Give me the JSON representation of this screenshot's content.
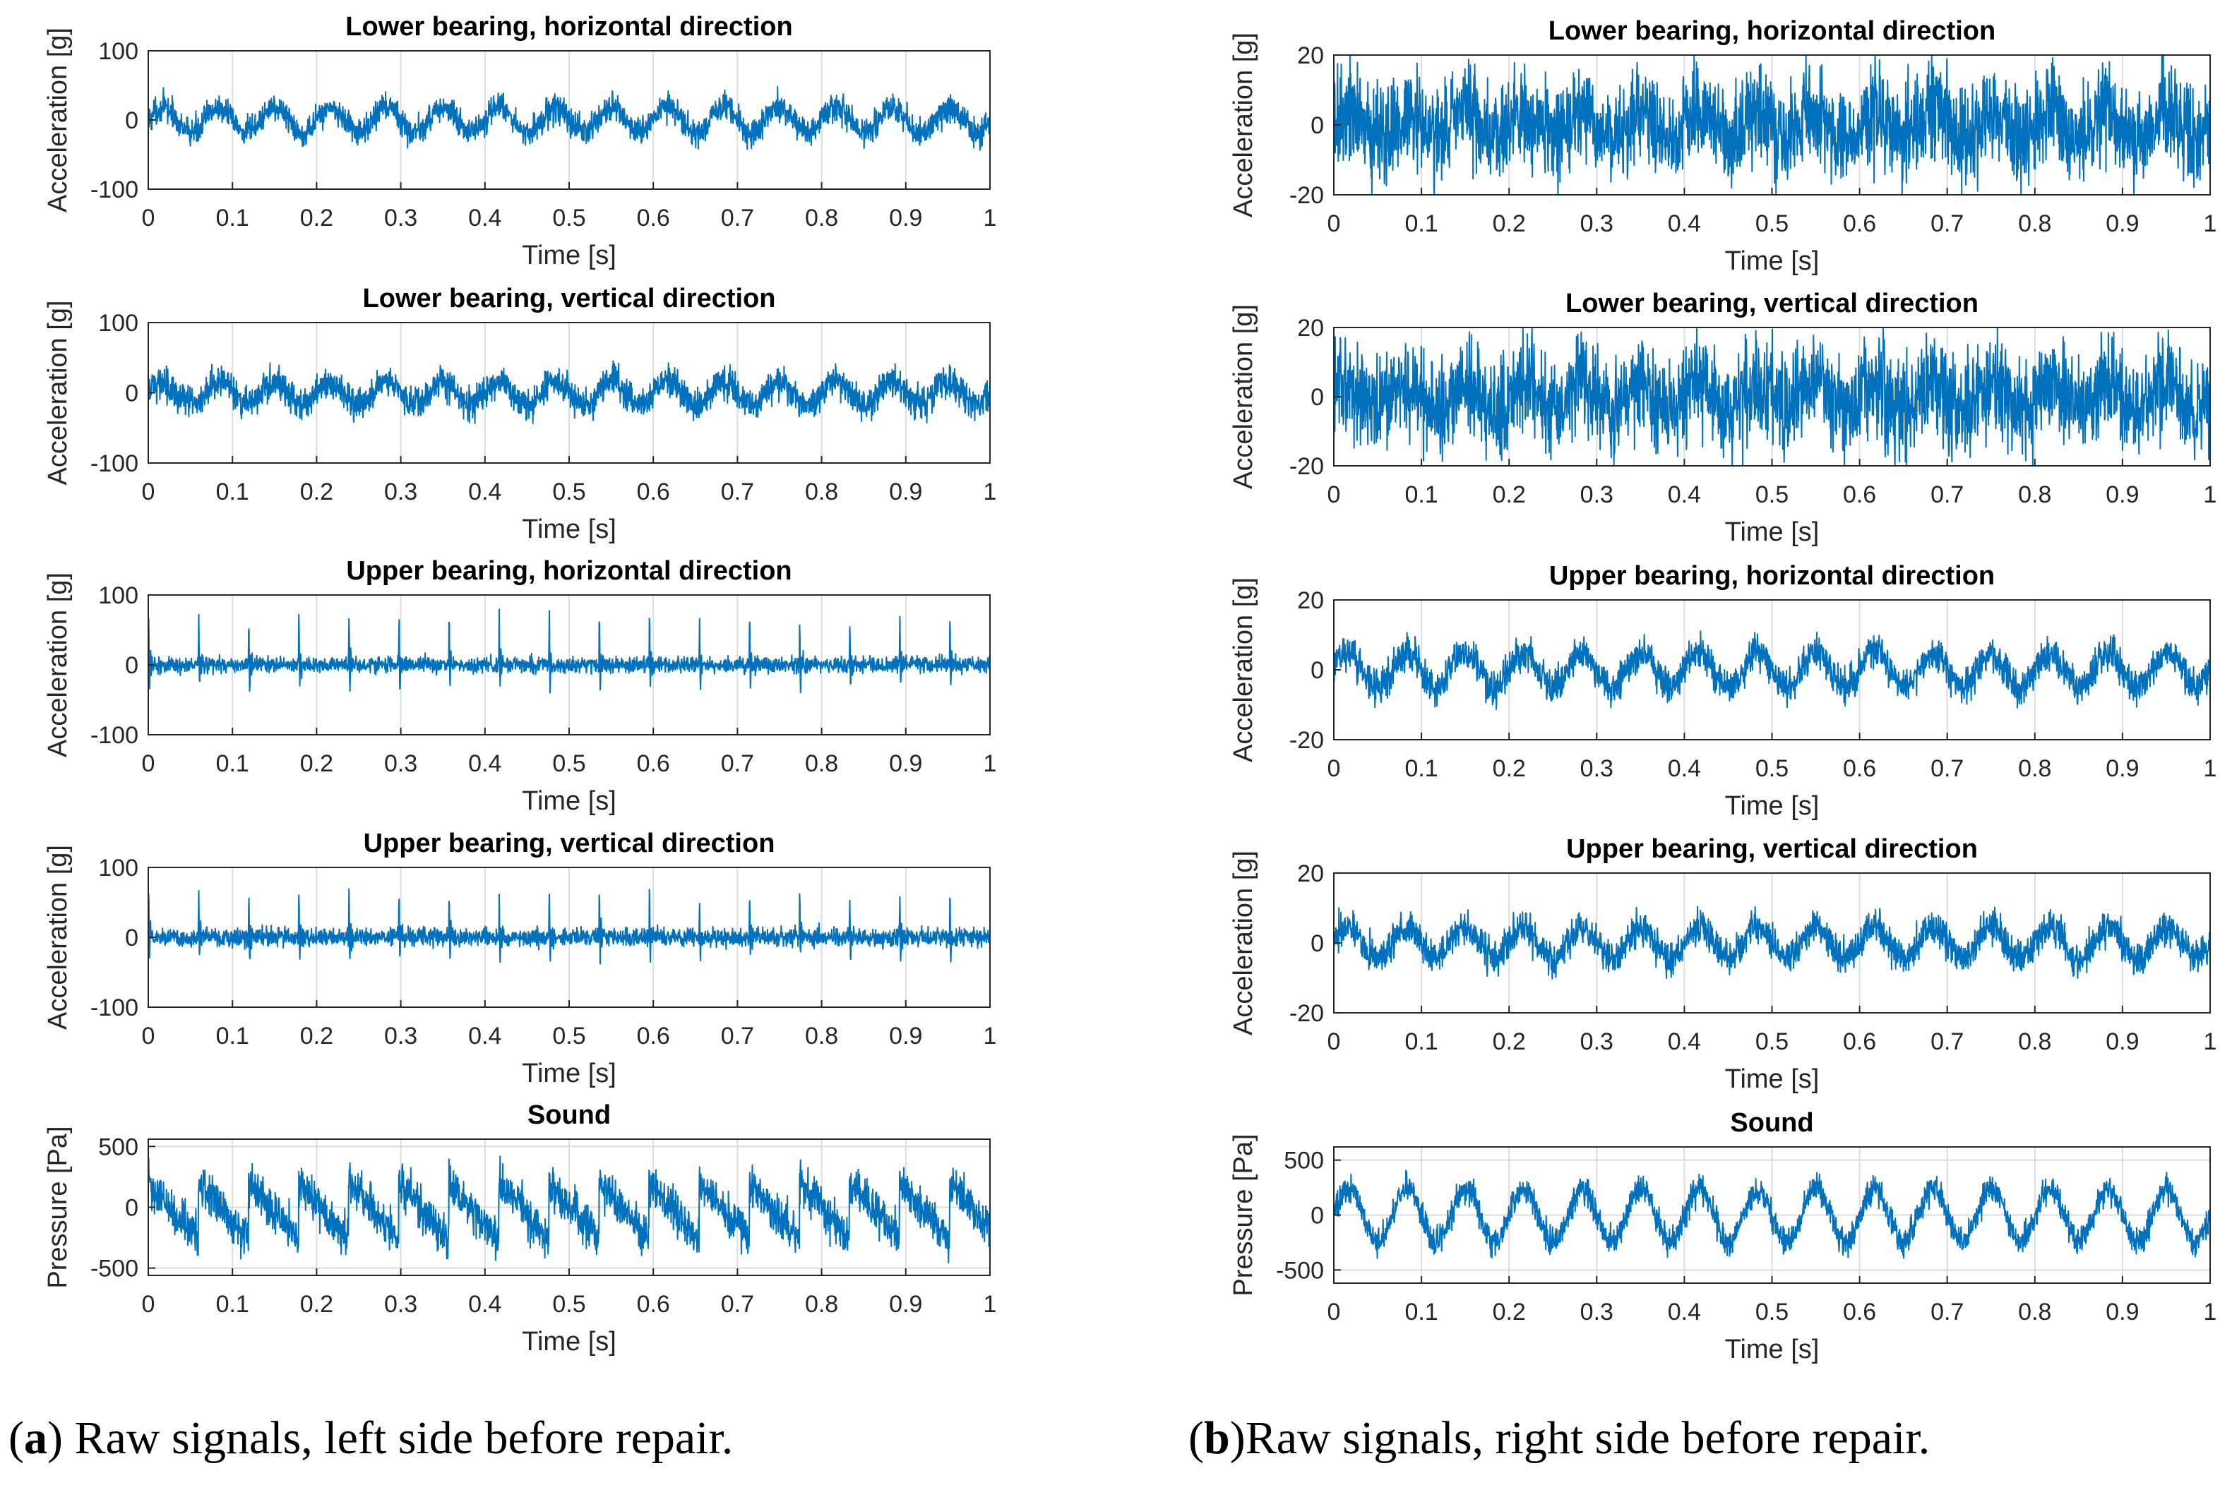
{
  "colors": {
    "signal": "#0072bd",
    "axis": "#262626",
    "grid": "#dcdcdc"
  },
  "chart_data": [
    {
      "type": "line",
      "panel": "a",
      "title": "Lower bearing, horizontal direction",
      "xlabel": "Time [s]",
      "ylabel": "Acceleration [g]",
      "xlim": [
        0,
        1
      ],
      "ylim": [
        -100,
        100
      ],
      "xticks": [
        0,
        0.1,
        0.2,
        0.3,
        0.4,
        0.5,
        0.6,
        0.7,
        0.8,
        0.9,
        1
      ],
      "xtick_labels": [
        "0",
        "0.1",
        "0.2",
        "0.3",
        "0.4",
        "0.5",
        "0.6",
        "0.7",
        "0.8",
        "0.9",
        "1"
      ],
      "yticks": [
        -100,
        0,
        100
      ],
      "ytick_labels": [
        "-100",
        "0",
        "100"
      ],
      "grid": "x",
      "series": [
        {
          "name": "signal",
          "pattern": "noise",
          "amplitude": 18,
          "period_s": 0.0667,
          "noise": 14
        }
      ]
    },
    {
      "type": "line",
      "panel": "a",
      "title": "Lower bearing, vertical direction",
      "xlabel": "Time [s]",
      "ylabel": "Acceleration [g]",
      "xlim": [
        0,
        1
      ],
      "ylim": [
        -100,
        100
      ],
      "xticks": [
        0,
        0.1,
        0.2,
        0.3,
        0.4,
        0.5,
        0.6,
        0.7,
        0.8,
        0.9,
        1
      ],
      "xtick_labels": [
        "0",
        "0.1",
        "0.2",
        "0.3",
        "0.4",
        "0.5",
        "0.6",
        "0.7",
        "0.8",
        "0.9",
        "1"
      ],
      "yticks": [
        -100,
        0,
        100
      ],
      "ytick_labels": [
        "-100",
        "0",
        "100"
      ],
      "grid": "x",
      "series": [
        {
          "name": "signal",
          "pattern": "noise",
          "amplitude": 16,
          "period_s": 0.0667,
          "noise": 16
        }
      ]
    },
    {
      "type": "line",
      "panel": "a",
      "title": "Upper bearing, horizontal direction",
      "xlabel": "Time [s]",
      "ylabel": "Acceleration [g]",
      "xlim": [
        0,
        1
      ],
      "ylim": [
        -100,
        100
      ],
      "xticks": [
        0,
        0.1,
        0.2,
        0.3,
        0.4,
        0.5,
        0.6,
        0.7,
        0.8,
        0.9,
        1
      ],
      "xtick_labels": [
        "0",
        "0.1",
        "0.2",
        "0.3",
        "0.4",
        "0.5",
        "0.6",
        "0.7",
        "0.8",
        "0.9",
        "1"
      ],
      "yticks": [
        -100,
        0,
        100
      ],
      "ytick_labels": [
        "-100",
        "0",
        "100"
      ],
      "grid": "x",
      "series": [
        {
          "name": "signal",
          "pattern": "impulse",
          "amplitude": 95,
          "period_s": 0.0595,
          "noise": 8
        }
      ]
    },
    {
      "type": "line",
      "panel": "a",
      "title": "Upper bearing, vertical direction",
      "xlabel": "Time [s]",
      "ylabel": "Acceleration [g]",
      "xlim": [
        0,
        1
      ],
      "ylim": [
        -100,
        100
      ],
      "xticks": [
        0,
        0.1,
        0.2,
        0.3,
        0.4,
        0.5,
        0.6,
        0.7,
        0.8,
        0.9,
        1
      ],
      "xtick_labels": [
        "0",
        "0.1",
        "0.2",
        "0.3",
        "0.4",
        "0.5",
        "0.6",
        "0.7",
        "0.8",
        "0.9",
        "1"
      ],
      "yticks": [
        -100,
        0,
        100
      ],
      "ytick_labels": [
        "-100",
        "0",
        "100"
      ],
      "grid": "x",
      "series": [
        {
          "name": "signal",
          "pattern": "impulse",
          "amplitude": 85,
          "period_s": 0.0595,
          "noise": 9
        }
      ]
    },
    {
      "type": "line",
      "panel": "a",
      "title": "Sound",
      "xlabel": "Time [s]",
      "ylabel": "Pressure [Pa]",
      "xlim": [
        0,
        1
      ],
      "ylim": [
        -560,
        560
      ],
      "xticks": [
        0,
        0.1,
        0.2,
        0.3,
        0.4,
        0.5,
        0.6,
        0.7,
        0.8,
        0.9,
        1
      ],
      "xtick_labels": [
        "0",
        "0.1",
        "0.2",
        "0.3",
        "0.4",
        "0.5",
        "0.6",
        "0.7",
        "0.8",
        "0.9",
        "1"
      ],
      "yticks": [
        -500,
        0,
        500
      ],
      "ytick_labels": [
        "-500",
        "0",
        "500"
      ],
      "grid": "xy",
      "series": [
        {
          "name": "signal",
          "pattern": "saw",
          "amplitude": 290,
          "period_s": 0.0595,
          "noise": 120
        }
      ]
    },
    {
      "type": "line",
      "panel": "b",
      "title": "Lower bearing, horizontal direction",
      "xlabel": "Time [s]",
      "ylabel": "Acceleration [g]",
      "xlim": [
        0,
        1
      ],
      "ylim": [
        -20,
        20
      ],
      "xticks": [
        0,
        0.1,
        0.2,
        0.3,
        0.4,
        0.5,
        0.6,
        0.7,
        0.8,
        0.9,
        1
      ],
      "xtick_labels": [
        "0",
        "0.1",
        "0.2",
        "0.3",
        "0.4",
        "0.5",
        "0.6",
        "0.7",
        "0.8",
        "0.9",
        "1"
      ],
      "yticks": [
        -20,
        0,
        20
      ],
      "ytick_labels": [
        "-20",
        "0",
        "20"
      ],
      "grid": "x",
      "series": [
        {
          "name": "signal",
          "pattern": "sine",
          "amplitude": 4,
          "period_s": 0.0667,
          "noise": 10
        }
      ]
    },
    {
      "type": "line",
      "panel": "b",
      "title": "Lower bearing, vertical direction",
      "xlabel": "Time [s]",
      "ylabel": "Acceleration [g]",
      "xlim": [
        0,
        1
      ],
      "ylim": [
        -20,
        20
      ],
      "xticks": [
        0,
        0.1,
        0.2,
        0.3,
        0.4,
        0.5,
        0.6,
        0.7,
        0.8,
        0.9,
        1
      ],
      "xtick_labels": [
        "0",
        "0.1",
        "0.2",
        "0.3",
        "0.4",
        "0.5",
        "0.6",
        "0.7",
        "0.8",
        "0.9",
        "1"
      ],
      "yticks": [
        -20,
        0,
        20
      ],
      "ytick_labels": [
        "-20",
        "0",
        "20"
      ],
      "grid": "x",
      "series": [
        {
          "name": "signal",
          "pattern": "sine",
          "amplitude": 4,
          "period_s": 0.0667,
          "noise": 10
        }
      ]
    },
    {
      "type": "line",
      "panel": "b",
      "title": "Upper bearing, horizontal direction",
      "xlabel": "Time [s]",
      "ylabel": "Acceleration [g]",
      "xlim": [
        0,
        1
      ],
      "ylim": [
        -20,
        20
      ],
      "xticks": [
        0,
        0.1,
        0.2,
        0.3,
        0.4,
        0.5,
        0.6,
        0.7,
        0.8,
        0.9,
        1
      ],
      "xtick_labels": [
        "0",
        "0.1",
        "0.2",
        "0.3",
        "0.4",
        "0.5",
        "0.6",
        "0.7",
        "0.8",
        "0.9",
        "1"
      ],
      "yticks": [
        -20,
        0,
        20
      ],
      "ytick_labels": [
        "-20",
        "0",
        "20"
      ],
      "grid": "x",
      "series": [
        {
          "name": "signal",
          "pattern": "sine",
          "amplitude": 5,
          "period_s": 0.0667,
          "noise": 3.5
        }
      ]
    },
    {
      "type": "line",
      "panel": "b",
      "title": "Upper bearing, vertical direction",
      "xlabel": "Time [s]",
      "ylabel": "Acceleration [g]",
      "xlim": [
        0,
        1
      ],
      "ylim": [
        -20,
        20
      ],
      "xticks": [
        0,
        0.1,
        0.2,
        0.3,
        0.4,
        0.5,
        0.6,
        0.7,
        0.8,
        0.9,
        1
      ],
      "xtick_labels": [
        "0",
        "0.1",
        "0.2",
        "0.3",
        "0.4",
        "0.5",
        "0.6",
        "0.7",
        "0.8",
        "0.9",
        "1"
      ],
      "yticks": [
        -20,
        0,
        20
      ],
      "ytick_labels": [
        "-20",
        "0",
        "20"
      ],
      "grid": "x",
      "series": [
        {
          "name": "signal",
          "pattern": "sine",
          "amplitude": 4.5,
          "period_s": 0.0667,
          "noise": 3.5
        }
      ]
    },
    {
      "type": "line",
      "panel": "b",
      "title": "Sound",
      "xlabel": "Time [s]",
      "ylabel": "Pressure [Pa]",
      "xlim": [
        0,
        1
      ],
      "ylim": [
        -620,
        620
      ],
      "xticks": [
        0,
        0.1,
        0.2,
        0.3,
        0.4,
        0.5,
        0.6,
        0.7,
        0.8,
        0.9,
        1
      ],
      "xtick_labels": [
        "0",
        "0.1",
        "0.2",
        "0.3",
        "0.4",
        "0.5",
        "0.6",
        "0.7",
        "0.8",
        "0.9",
        "1"
      ],
      "yticks": [
        -500,
        0,
        500
      ],
      "ytick_labels": [
        "-500",
        "0",
        "500"
      ],
      "grid": "xy",
      "series": [
        {
          "name": "signal",
          "pattern": "sine",
          "amplitude": 240,
          "period_s": 0.0667,
          "noise": 90
        }
      ]
    }
  ],
  "captions": {
    "a": {
      "label": "a",
      "text": " Raw signals, left side before repair."
    },
    "b": {
      "label": "b",
      "text": "Raw signals, right side before repair."
    }
  }
}
